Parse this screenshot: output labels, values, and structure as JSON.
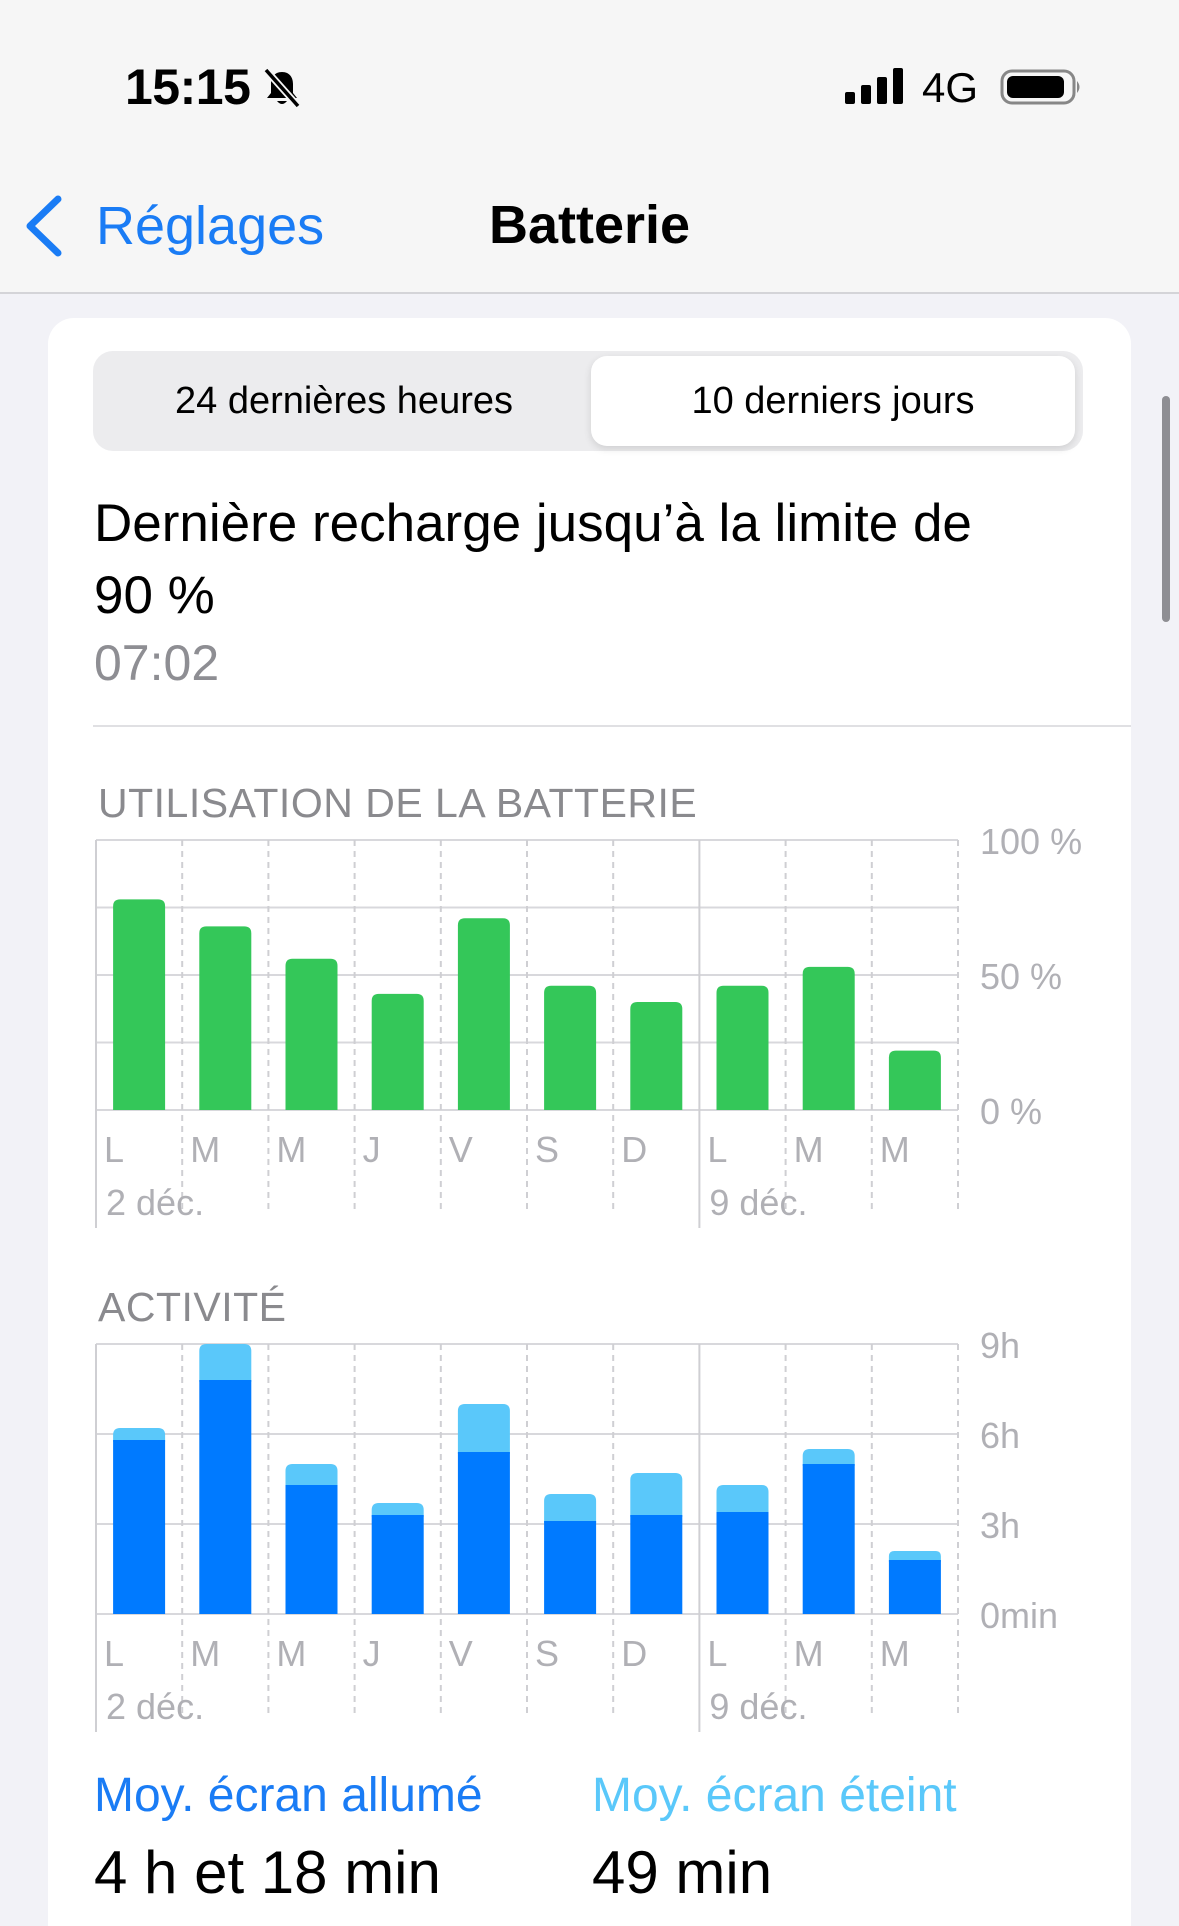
{
  "status_bar": {
    "time": "15:15",
    "network": "4G"
  },
  "nav": {
    "back_label": "Réglages",
    "title": "Batterie"
  },
  "segments": {
    "options": [
      "24 dernières heures",
      "10 derniers jours"
    ],
    "selected_index": 1
  },
  "last_charge": {
    "title": "Dernière recharge jusqu’à la limite de 90 %",
    "time": "07:02"
  },
  "colors": {
    "accent": "#1a7cf5",
    "battery_green": "#34c759",
    "screen_on": "#007aff",
    "screen_off": "#5ac8fa"
  },
  "chart_data": [
    {
      "type": "bar",
      "title": "UTILISATION DE LA BATTERIE",
      "categories": [
        "L",
        "M",
        "M",
        "J",
        "V",
        "S",
        "D",
        "L",
        "M",
        "M"
      ],
      "date_labels": [
        {
          "index": 0,
          "label": "2 déc."
        },
        {
          "index": 7,
          "label": "9 déc."
        }
      ],
      "values": [
        78,
        68,
        56,
        43,
        71,
        46,
        40,
        46,
        53,
        22
      ],
      "ylim": [
        0,
        100
      ],
      "yticks": [
        "100 %",
        "50 %",
        "0 %"
      ],
      "grid": true,
      "color": "#34c759"
    },
    {
      "type": "bar",
      "stacked": true,
      "title": "ACTIVITÉ",
      "categories": [
        "L",
        "M",
        "M",
        "J",
        "V",
        "S",
        "D",
        "L",
        "M",
        "M"
      ],
      "date_labels": [
        {
          "index": 0,
          "label": "2 déc."
        },
        {
          "index": 7,
          "label": "9 déc."
        }
      ],
      "ylim": [
        0,
        9
      ],
      "yticks": [
        "9h",
        "6h",
        "3h",
        "0min"
      ],
      "grid": true,
      "series": [
        {
          "values": [
            5.8,
            7.8,
            4.3,
            3.3,
            5.4,
            3.1,
            3.3,
            3.4,
            5.0,
            1.8
          ],
          "color": "#007aff"
        },
        {
          "values": [
            0.4,
            1.2,
            0.7,
            0.4,
            1.6,
            0.9,
            1.4,
            0.9,
            0.5,
            0.3
          ],
          "color": "#5ac8fa"
        }
      ]
    }
  ],
  "legend": {
    "screen_on_label": "Moy. écran allumé",
    "screen_on_value": "4 h et 18 min",
    "screen_off_label": "Moy. écran éteint",
    "screen_off_value": "49 min"
  }
}
